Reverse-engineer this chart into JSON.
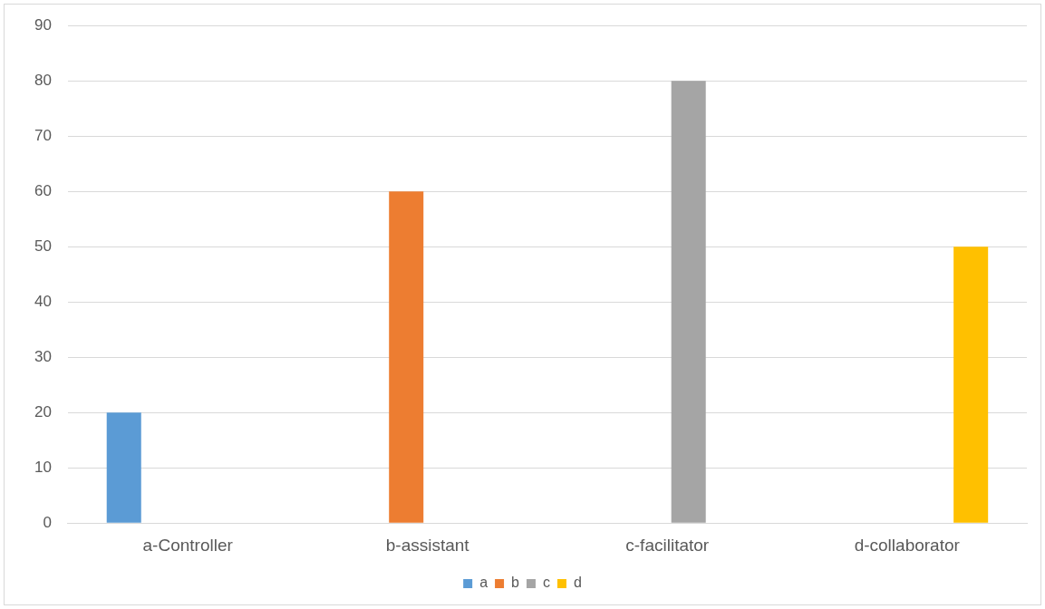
{
  "chart_data": {
    "type": "bar",
    "categories": [
      "a-Controller",
      "b-assistant",
      "c-facilitator",
      "d-collaborator"
    ],
    "series": [
      {
        "name": "a",
        "color": "#5b9bd5",
        "values": [
          20,
          null,
          null,
          null
        ]
      },
      {
        "name": "b",
        "color": "#ed7d31",
        "values": [
          null,
          60,
          null,
          null
        ]
      },
      {
        "name": "c",
        "color": "#a5a5a5",
        "values": [
          null,
          null,
          80,
          null
        ]
      },
      {
        "name": "d",
        "color": "#ffc000",
        "values": [
          null,
          null,
          null,
          50
        ]
      }
    ],
    "ylim": [
      0,
      90
    ],
    "yticks": [
      0,
      10,
      20,
      30,
      40,
      50,
      60,
      70,
      80,
      90
    ],
    "grid": "y",
    "legend": "bottom"
  }
}
